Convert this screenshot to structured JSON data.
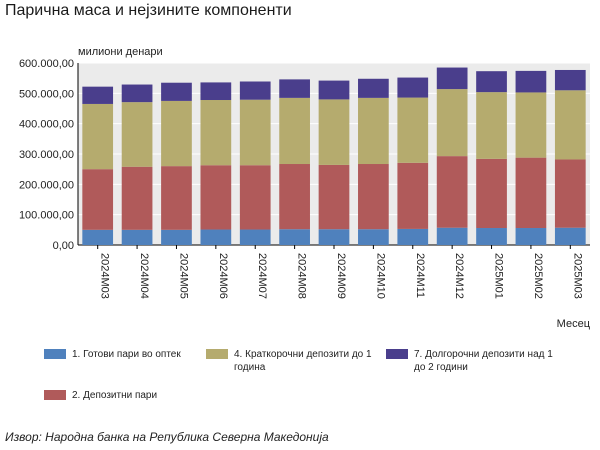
{
  "title": "Парична маса и нејзините компоненти",
  "source": "Извор: Народна банка на Република Северна Македонија",
  "chart_data": {
    "type": "bar",
    "stacked": true,
    "ylabel": "милиони денари",
    "xlabel": "Месец",
    "ylim": [
      0,
      600000
    ],
    "yticks": [
      "0,00",
      "100.000,00",
      "200.000,00",
      "300.000,00",
      "400.000,00",
      "500.000,00",
      "600.000,00"
    ],
    "grid": true,
    "legend_position": "bottom",
    "categories": [
      "2024M03",
      "2024M04",
      "2024M05",
      "2024M06",
      "2024M07",
      "2024M08",
      "2024M09",
      "2024M10",
      "2024M11",
      "2024M12",
      "2025M01",
      "2025M02",
      "2025M03"
    ],
    "series": [
      {
        "name": "1. Готови пари во оптек",
        "color": "#4f81bd",
        "values": [
          50000,
          50000,
          50000,
          51000,
          51000,
          52000,
          52000,
          52000,
          53000,
          57000,
          56000,
          56000,
          57000
        ]
      },
      {
        "name": "2. Депозитни пари",
        "color": "#b05a5a",
        "values": [
          200000,
          208000,
          210000,
          212000,
          212000,
          215000,
          212000,
          215000,
          218000,
          236000,
          228000,
          232000,
          225000
        ]
      },
      {
        "name": "4. Краткорочни депозити до 1 година",
        "color": "#b5ab6e",
        "values": [
          215000,
          213000,
          215000,
          215000,
          216000,
          218000,
          216000,
          218000,
          215000,
          221000,
          220000,
          215000,
          228000
        ]
      },
      {
        "name": "7. Долгорочни депозити над 1 до 2 години",
        "color": "#4a3e8c",
        "values": [
          57000,
          58000,
          60000,
          58000,
          60000,
          61000,
          62000,
          63000,
          66000,
          71000,
          69000,
          71000,
          67000
        ]
      }
    ]
  }
}
